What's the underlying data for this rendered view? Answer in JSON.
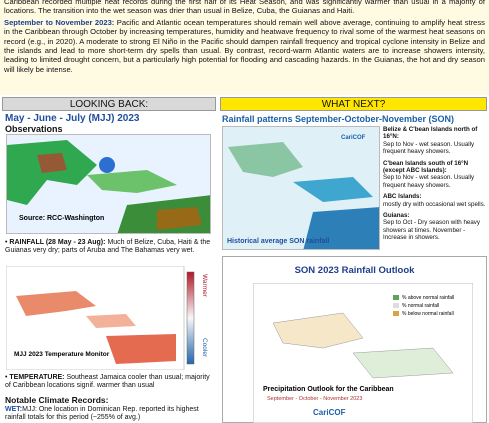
{
  "intro": {
    "text": "Caribbean recorded multiple heat records during the first half of its Heat Season, and was significantly warmer than usual in a majority of locations. The transition into the wet season was drier than usual in Belize, Cuba, the Guianas and Haiti.",
    "lead": "September to November 2023:",
    "body": "Pacific and Atlantic ocean temperatures should remain well above average, continuing to amplify heat stress in the Caribbean through October by increasing temperatures, humidity and heatwave frequency to rival some of the warmest heat seasons on record (e.g., in 2020). A moderate to strong El Niño in the Pacific should dampen rainfall frequency and tropical cyclone intensity in Belize and the islands and lead to more short-term dry spells than usual. By contrast, record-warm Atlantic waters are to increase showers intensity, leading to limited drought concern, but a particularly high potential for flooding and cascading hazards. In the Guianas, the hot and dry season will likely be intense."
  },
  "left": {
    "header": "LOOKING BACK:",
    "title": "May - June - July (MJJ) 2023",
    "subtitle": "Observations",
    "source": "Source: RCC-Washington",
    "rainfall_lead": "RAINFALL (28 May - 23 Aug):",
    "rainfall": "Much of Belize, Cuba, Haiti & the Guianas very dry; parts of Aruba and The Bahamas very wet.",
    "temp_map": "MJJ 2023 Temperature Monitor",
    "warmer": "Warmer",
    "cooler": "Cooler",
    "temp_lead": "TEMPERATURE:",
    "temp": "Southeast Jamaica cooler than usual; majority of Caribbean locations signif. warmer than usual",
    "records_title": "Notable Climate Records:",
    "wet_lead": "WET:",
    "wet": "MJJ: One location in Dominican Rep. reported its highest rainfall totals for this period (~255% of avg.)"
  },
  "right": {
    "header": "WHAT NEXT?",
    "title": "Rainfall patterns September-October-November (SON)",
    "map_label": "Historical average SON rainfall",
    "logo": "CariCOF",
    "notes": [
      {
        "head": "Belize & C'bean Islands north of 16°N:",
        "text": "Sep to Nov - wet season. Usually frequent heavy showers."
      },
      {
        "head": "C'bean Islands south of 16°N (except ABC Islands):",
        "text": "Sep to Nov - wet season. Usually frequent heavy showers."
      },
      {
        "head": "ABC Islands:",
        "text": "mostly dry with occasional wet spells."
      },
      {
        "head": "Guianas:",
        "text": "Sep to Oct - Dry season with heavy showers at times. November - Increase in showers."
      }
    ],
    "outlook": {
      "title": "SON 2023 Rainfall Outlook",
      "legend": [
        "% above normal rainfall",
        "% normal rainfall",
        "% below normal rainfall"
      ],
      "caption": "Precipitation Outlook for the Caribbean",
      "period": "September - October - November 2023",
      "logo": "CariCOF"
    }
  }
}
